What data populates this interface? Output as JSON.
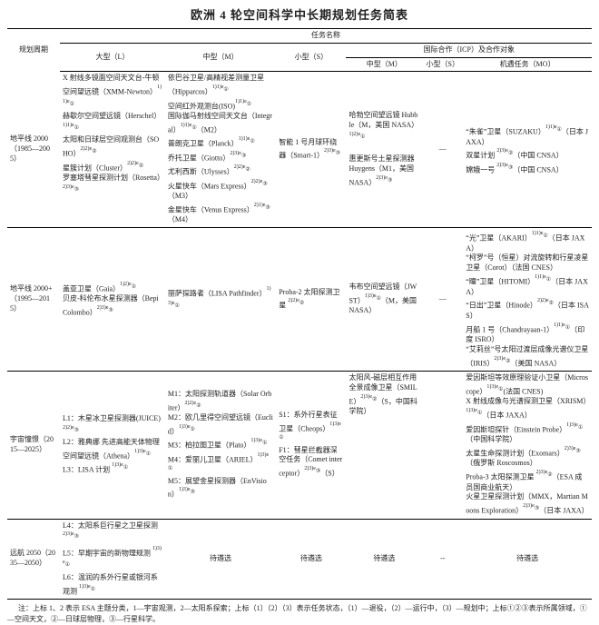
{
  "title": "欧洲 4 轮空间科学中长期规划任务简表",
  "header": {
    "period": "规划周期",
    "missions": "任务名称",
    "large": "大型（L）",
    "medium": "中型（M）",
    "small": "小型（S）",
    "icp": "国际合作（ICP）及合作对象",
    "icp_m": "中型（M）",
    "icp_s": "小型（S）",
    "icp_mo": "机遇任务（MO）"
  },
  "rows": [
    {
      "period": "地平线 2000（1985—2005）",
      "large": "X 射线多镜面空间天文台-牛顿空间望远镜（XMM-Newton）1)1)e①\n赫歇尔空间望远镜（Herschel）1)1)e①\n太阳和日球层空间观测台（SOHO）2)2)e②\n星簇计划（Cluster）2)2)e②\n罗塞塔彗星探测计划（Rosetta）2)3)e③",
      "medium": "依巴谷卫星/高精视差测量卫星（Hipparcos）1)1)e①\n空间红外观测台(ISO)1)1)e①\n国际伽马射线空间天文台（Integral）1)1)e①（M2）\n普朗克卫星（Planck）1)1)e①\n乔托卫星（Giotto）2)3)e③\n尤利西斯（Ulysses）2)2)e②\n火星快车（Mars Express）2)2)e③（M3）\n金星快车（Venus Express）2)1)e③（M4）",
      "small": "智能 1 号月球环绕器（Smart-1）2)3)e③",
      "icp_m": "哈勃空间望远镜 Hubble（M，美国 NASA）1)2)e①\n\n惠更斯号土星探测器 Huygens（M1，美国 NASA）2)3)e③",
      "icp_s": "—",
      "icp_mo": "“朱雀”卫星（SUZAKU）1)1)e①（日本 JAXA）\n双星计划 2)3)e②（中国 CNSA）\n嫦娥一号 2)3)e③（中国 CNSA）"
    },
    {
      "period": "地平线 2000+（1995—2015）",
      "large": "盖亚卫星（Gaia）1)2)e①\n贝皮-科伦布水星探测器（BepiColombo）2)3)e③",
      "medium": "丽萨探路者（LISA Pathfinder）1)3)e①",
      "small": "Proba-2 太阳探测卫星 2)2)e②",
      "icp_m": "韦布空间望远镜（JWST）1)3)e①（M，美国 NASA）",
      "icp_s": "—",
      "icp_mo": "“光”卫星（AKARI）1)1)e①（日本 JAXA）\n“柯罗”号（恒星）对流旋转和行星凌星卫星（Corot）（法国 CNES）\n“瞳”卫星（HITOMI）1)1)e①（日本 JAXA）\n“日出”卫星（Hinode）2)2)e②（日本 ISAS）\n月船 1 号（Chandrayaan-1）1)1)e①（印度 ISRO）\n“艾莉丝”号太阳过渡层成像光谱仪卫星（IRIS）2)3)e②（美国 NASA）"
    },
    {
      "period": "宇宙憧憬（2015—2025）",
      "large": "L1：木星冰卫星探测器(JUICE)2)2)e③\nL2：雅典娜 先进高能天体物理空间望远镜（Athena）1)3)e①\nL3：LISA 计划 1)3)e①",
      "medium": "M1：太阳探测轨道器（Solar Orbiter）2)2)e②\nM2：欧几里得空间望远镜（Euclid）1)3)e①\nM3：柏拉图卫星（Plato）1)3)e①\nM4：爱丽儿卫星（ARIEL）1)3)e①\nM5：展望金星探测器（EnVision）1)3)e③",
      "small": "S1：系外行星表征卫星（Cheops）1)3)e①\nF1：彗星拦截器深空任务（Comet interceptor）2)3)e③（S）",
      "icp_m": "太阳风-磁层相互作用全景成像卫星（SMILE）2)3)e②（S，中国科学院）",
      "icp_s": "",
      "icp_mo": "爱因斯坦等效原理验证小卫星（Microscope）1)3)e①(法国 CNES)\nX 射线成像与光谱探测卫星（XRISM）1)3)e①（日本 JAXA）\n爱因斯坦探针（Einstein Probe）1)3)e①（中国科学院）\n太星生命探测计划（Exomars）2)3)e③（俄罗斯 Roscosmos）\nProba-3 太阳探测卫星 2)3)e②（ESA 成员国商业航天）\n火星卫星探测计划（MMX，Martian Moons Exploration）2)3)e③（日本 JAXA）"
    },
    {
      "period": "远航 2050（2035—2050）",
      "large": "L4：太阳系巨行星之卫星探测 2)3)e③\nL5：早期宇宙的新物理规测 1)3)e①\nL6：温润的系外行星或银河系观测 1)3)e①",
      "medium": "待遴选",
      "small": "待遴选",
      "icp_m": "待遴选",
      "icp_s": "--",
      "icp_mo": "待遴选"
    }
  ],
  "footnote": "注：上标 1、2 表示 ESA 主题分类，1—宇宙观测，2—太阳系探索；上标（1）（2）（3）表示任务状态，（1）—退役，（2）—运行中，（3）—规划中；上标①②③表示所属领域，①—空间天文，②—日球层物理，③—行星科学。"
}
